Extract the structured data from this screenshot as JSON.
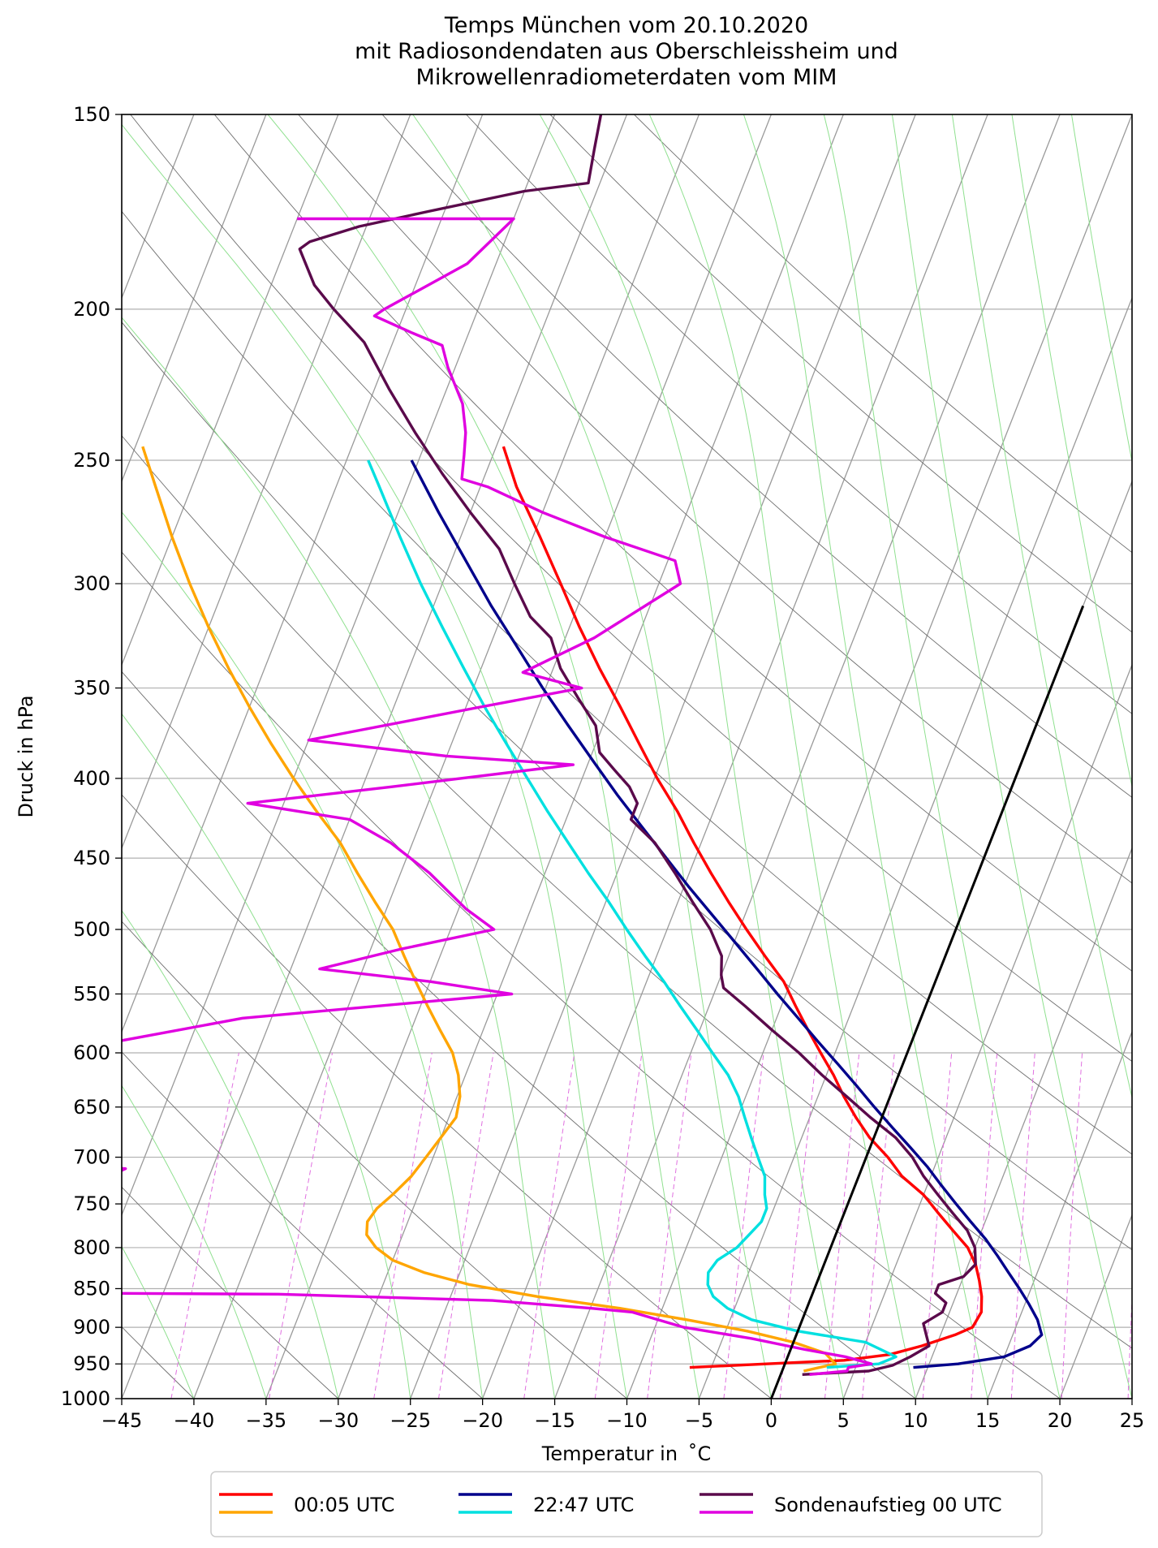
{
  "chart_data": {
    "type": "line",
    "title": [
      "Temps München vom 20.10.2020",
      "mit Radiosondendaten aus Oberschleissheim und",
      "Mikrowellenradiometerdaten vom MIM"
    ],
    "xlabel": "Temperatur in  ˚C",
    "ylabel": "Druck in hPa",
    "xlim": [
      -45,
      25
    ],
    "ylim": [
      1000,
      150
    ],
    "yscale": "log",
    "skew": "skew-T log-p",
    "xticks": [
      -45,
      -40,
      -35,
      -30,
      -25,
      -20,
      -15,
      -10,
      -5,
      0,
      5,
      10,
      15,
      20,
      25
    ],
    "xtick_labels": [
      "−45",
      "−40",
      "−35",
      "−30",
      "−25",
      "−20",
      "−15",
      "−10",
      "−5",
      "0",
      "5",
      "10",
      "15",
      "20",
      "25"
    ],
    "yticks": [
      150,
      200,
      250,
      300,
      350,
      400,
      450,
      500,
      550,
      600,
      650,
      700,
      750,
      800,
      850,
      900,
      950,
      1000
    ],
    "ytick_labels": [
      "150",
      "200",
      "250",
      "300",
      "350",
      "400",
      "450",
      "500",
      "550",
      "600",
      "650",
      "700",
      "750",
      "800",
      "850",
      "900",
      "950",
      "1000"
    ],
    "grid": true,
    "legend": {
      "placement": "bottom-center, below plot",
      "entries": [
        {
          "label": "00:05 UTC",
          "colors": [
            "#ff0000",
            "#ffa500"
          ]
        },
        {
          "label": "22:47 UTC",
          "colors": [
            "#00008b",
            "#00e0e0"
          ]
        },
        {
          "label": "Sondenaufstieg 00 UTC",
          "colors": [
            "#5a0a4b",
            "#e000e0"
          ]
        }
      ]
    },
    "series": [
      {
        "group": "00:05 UTC",
        "kind": "temperature",
        "color": "#ff0000",
        "points": [
          [
            -6.5,
            955
          ],
          [
            -1.3,
            950
          ],
          [
            4,
            945
          ],
          [
            7,
            937
          ],
          [
            9,
            925
          ],
          [
            11,
            910
          ],
          [
            12,
            900
          ],
          [
            12.2,
            880
          ],
          [
            11.8,
            860
          ],
          [
            11.2,
            840
          ],
          [
            10.5,
            820
          ],
          [
            9.5,
            800
          ],
          [
            8,
            780
          ],
          [
            6.5,
            760
          ],
          [
            5,
            740
          ],
          [
            3,
            720
          ],
          [
            1.5,
            700
          ],
          [
            -0.3,
            680
          ],
          [
            -1.8,
            660
          ],
          [
            -3.2,
            640
          ],
          [
            -4.5,
            620
          ],
          [
            -6,
            600
          ],
          [
            -7.5,
            580
          ],
          [
            -9,
            560
          ],
          [
            -10.5,
            540
          ],
          [
            -12.5,
            520
          ],
          [
            -14.5,
            500
          ],
          [
            -16.5,
            480
          ],
          [
            -18.5,
            460
          ],
          [
            -20.5,
            440
          ],
          [
            -22.5,
            420
          ],
          [
            -24.8,
            400
          ],
          [
            -27,
            380
          ],
          [
            -29.3,
            360
          ],
          [
            -31.8,
            340
          ],
          [
            -34.3,
            320
          ],
          [
            -36.8,
            300
          ],
          [
            -39.5,
            280
          ],
          [
            -42.5,
            260
          ],
          [
            -44.5,
            245
          ]
        ]
      },
      {
        "group": "00:05 UTC",
        "kind": "dewpoint",
        "color": "#ffa500",
        "points": [
          [
            1.5,
            960
          ],
          [
            3.5,
            950
          ],
          [
            2.5,
            935
          ],
          [
            0,
            920
          ],
          [
            -3.5,
            905
          ],
          [
            -8,
            890
          ],
          [
            -13,
            875
          ],
          [
            -19,
            860
          ],
          [
            -24,
            845
          ],
          [
            -27.5,
            830
          ],
          [
            -30,
            815
          ],
          [
            -31.5,
            800
          ],
          [
            -32.5,
            785
          ],
          [
            -32.8,
            770
          ],
          [
            -32.5,
            755
          ],
          [
            -31.8,
            740
          ],
          [
            -31,
            720
          ],
          [
            -30.5,
            700
          ],
          [
            -30,
            680
          ],
          [
            -29.5,
            660
          ],
          [
            -29.8,
            640
          ],
          [
            -30.5,
            620
          ],
          [
            -31.5,
            600
          ],
          [
            -33,
            580
          ],
          [
            -34.5,
            560
          ],
          [
            -36,
            540
          ],
          [
            -37.5,
            520
          ],
          [
            -39,
            500
          ],
          [
            -41,
            480
          ],
          [
            -43,
            460
          ],
          [
            -45,
            440
          ],
          [
            -47.5,
            420
          ],
          [
            -50,
            400
          ],
          [
            -52.5,
            380
          ],
          [
            -55,
            360
          ],
          [
            -57.5,
            340
          ],
          [
            -60,
            320
          ],
          [
            -62.5,
            300
          ],
          [
            -65,
            280
          ],
          [
            -67.5,
            260
          ],
          [
            -69.5,
            245
          ]
        ]
      },
      {
        "group": "22:47 UTC",
        "kind": "temperature",
        "color": "#00008b",
        "points": [
          [
            9,
            955
          ],
          [
            12,
            950
          ],
          [
            15,
            940
          ],
          [
            16.5,
            925
          ],
          [
            17,
            910
          ],
          [
            16.3,
            890
          ],
          [
            15.3,
            870
          ],
          [
            14.2,
            850
          ],
          [
            13,
            830
          ],
          [
            11.8,
            810
          ],
          [
            10.5,
            790
          ],
          [
            9,
            770
          ],
          [
            7.5,
            750
          ],
          [
            6,
            730
          ],
          [
            4.5,
            710
          ],
          [
            2.8,
            690
          ],
          [
            1,
            670
          ],
          [
            -0.8,
            650
          ],
          [
            -2.6,
            630
          ],
          [
            -4.5,
            610
          ],
          [
            -6.5,
            590
          ],
          [
            -8.5,
            570
          ],
          [
            -10.6,
            550
          ],
          [
            -12.7,
            530
          ],
          [
            -14.9,
            510
          ],
          [
            -17.2,
            490
          ],
          [
            -19.6,
            470
          ],
          [
            -22,
            450
          ],
          [
            -24.5,
            430
          ],
          [
            -27.1,
            410
          ],
          [
            -29.7,
            390
          ],
          [
            -32.4,
            370
          ],
          [
            -35.2,
            350
          ],
          [
            -38,
            330
          ],
          [
            -41,
            310
          ],
          [
            -44,
            290
          ],
          [
            -47.2,
            270
          ],
          [
            -50.5,
            250
          ]
        ]
      },
      {
        "group": "22:47 UTC",
        "kind": "dewpoint",
        "color": "#00e0e0",
        "points": [
          [
            3,
            955
          ],
          [
            6.5,
            950
          ],
          [
            7.5,
            940
          ],
          [
            5,
            920
          ],
          [
            0,
            905
          ],
          [
            -3.5,
            890
          ],
          [
            -5.5,
            875
          ],
          [
            -6.8,
            860
          ],
          [
            -7.5,
            845
          ],
          [
            -7.8,
            830
          ],
          [
            -7.5,
            815
          ],
          [
            -6.5,
            800
          ],
          [
            -6,
            785
          ],
          [
            -5.5,
            770
          ],
          [
            -5.5,
            755
          ],
          [
            -6,
            740
          ],
          [
            -6.5,
            720
          ],
          [
            -7.5,
            700
          ],
          [
            -8.5,
            680
          ],
          [
            -9.5,
            660
          ],
          [
            -10.5,
            640
          ],
          [
            -11.8,
            620
          ],
          [
            -13.5,
            600
          ],
          [
            -15.2,
            580
          ],
          [
            -17,
            560
          ],
          [
            -18.8,
            540
          ],
          [
            -20.8,
            520
          ],
          [
            -22.8,
            500
          ],
          [
            -24.8,
            480
          ],
          [
            -27,
            460
          ],
          [
            -29.2,
            440
          ],
          [
            -31.5,
            420
          ],
          [
            -33.8,
            400
          ],
          [
            -36.2,
            380
          ],
          [
            -38.7,
            360
          ],
          [
            -41.2,
            340
          ],
          [
            -43.8,
            320
          ],
          [
            -46.5,
            300
          ],
          [
            -49.2,
            280
          ],
          [
            -52,
            260
          ],
          [
            -53.5,
            250
          ]
        ]
      },
      {
        "group": "Sondenaufstieg 00 UTC",
        "kind": "temperature",
        "color": "#5a0a4b",
        "points": [
          [
            1.5,
            965
          ],
          [
            6,
            960
          ],
          [
            7.5,
            952
          ],
          [
            8.5,
            940
          ],
          [
            9.5,
            925
          ],
          [
            9,
            910
          ],
          [
            8.5,
            895
          ],
          [
            9.5,
            880
          ],
          [
            9.5,
            868
          ],
          [
            8.5,
            856
          ],
          [
            8.5,
            845
          ],
          [
            10,
            835
          ],
          [
            10.5,
            820
          ],
          [
            10,
            800
          ],
          [
            9,
            780
          ],
          [
            7.5,
            760
          ],
          [
            6,
            740
          ],
          [
            4.5,
            720
          ],
          [
            3.2,
            700
          ],
          [
            1.5,
            680
          ],
          [
            -0.8,
            660
          ],
          [
            -3,
            640
          ],
          [
            -5.3,
            620
          ],
          [
            -7.5,
            600
          ],
          [
            -10,
            580
          ],
          [
            -12.5,
            560
          ],
          [
            -14.5,
            545
          ],
          [
            -15,
            535
          ],
          [
            -15.5,
            520
          ],
          [
            -17,
            500
          ],
          [
            -19,
            480
          ],
          [
            -21,
            460
          ],
          [
            -23.2,
            440
          ],
          [
            -25.5,
            425
          ],
          [
            -25.5,
            415
          ],
          [
            -26.5,
            405
          ],
          [
            -28,
            395
          ],
          [
            -29.5,
            385
          ],
          [
            -30.5,
            370
          ],
          [
            -32.5,
            355
          ],
          [
            -34.5,
            340
          ],
          [
            -36,
            325
          ],
          [
            -38,
            315
          ],
          [
            -40,
            300
          ],
          [
            -42,
            285
          ],
          [
            -45,
            270
          ],
          [
            -48,
            255
          ],
          [
            -51,
            240
          ],
          [
            -54,
            225
          ],
          [
            -57,
            210
          ],
          [
            -60,
            200
          ],
          [
            -62,
            193
          ],
          [
            -64,
            183
          ],
          [
            -63.5,
            181
          ],
          [
            -60.5,
            177
          ],
          [
            -56,
            173
          ],
          [
            -50,
            168
          ],
          [
            -45.8,
            166
          ],
          [
            -46.3,
            158
          ],
          [
            -46.8,
            150
          ]
        ]
      },
      {
        "group": "Sondenaufstieg 00 UTC",
        "kind": "dewpoint",
        "color": "#e000e0",
        "points": [
          [
            2,
            965
          ],
          [
            4.5,
            960
          ],
          [
            4.5,
            955
          ],
          [
            6,
            950
          ],
          [
            4,
            940
          ],
          [
            1,
            930
          ],
          [
            -3,
            915
          ],
          [
            -8,
            900
          ],
          [
            -10,
            890
          ],
          [
            -12,
            880
          ],
          [
            -15,
            875
          ],
          [
            -22,
            865
          ],
          [
            -37,
            857
          ],
          [
            -59,
            855
          ],
          [
            -59.5,
            840
          ],
          [
            -58,
            820
          ],
          [
            -57,
            800
          ],
          [
            -56,
            780
          ],
          [
            -54.5,
            760
          ],
          [
            -53,
            740
          ],
          [
            -52.5,
            725
          ],
          [
            -51,
            712
          ],
          [
            -52.5,
            710
          ],
          [
            -53.5,
            700
          ],
          [
            -55,
            680
          ],
          [
            -56,
            660
          ],
          [
            -57,
            640
          ],
          [
            -58,
            620
          ],
          [
            -59,
            600
          ],
          [
            -47,
            570
          ],
          [
            -29,
            550
          ],
          [
            -35,
            540
          ],
          [
            -43,
            530
          ],
          [
            -38,
            515
          ],
          [
            -32,
            500
          ],
          [
            -34.5,
            485
          ],
          [
            -38,
            460
          ],
          [
            -41.5,
            440
          ],
          [
            -45,
            425
          ],
          [
            -52.5,
            415
          ],
          [
            -43,
            405
          ],
          [
            -31,
            392
          ],
          [
            -40,
            387
          ],
          [
            -50,
            378
          ],
          [
            -39,
            360
          ],
          [
            -32.5,
            350
          ],
          [
            -37,
            342
          ],
          [
            -33,
            325
          ],
          [
            -28.5,
            300
          ],
          [
            -29.5,
            290
          ],
          [
            -35,
            280
          ],
          [
            -40,
            270
          ],
          [
            -44.5,
            260
          ],
          [
            -46.5,
            257
          ],
          [
            -47,
            248
          ],
          [
            -47.5,
            240
          ],
          [
            -48.5,
            230
          ],
          [
            -50.5,
            218
          ],
          [
            -51.5,
            211
          ],
          [
            -54,
            207
          ],
          [
            -57,
            202
          ],
          [
            -56.5,
            200
          ],
          [
            -52,
            187
          ],
          [
            -50,
            175
          ],
          [
            -59,
            175
          ],
          [
            -65,
            175
          ]
        ]
      },
      {
        "group": "reference",
        "kind": "0 °C isotherm",
        "color": "#000000",
        "points": [
          [
            0,
            1000
          ],
          [
            0,
            310
          ]
        ]
      }
    ]
  }
}
